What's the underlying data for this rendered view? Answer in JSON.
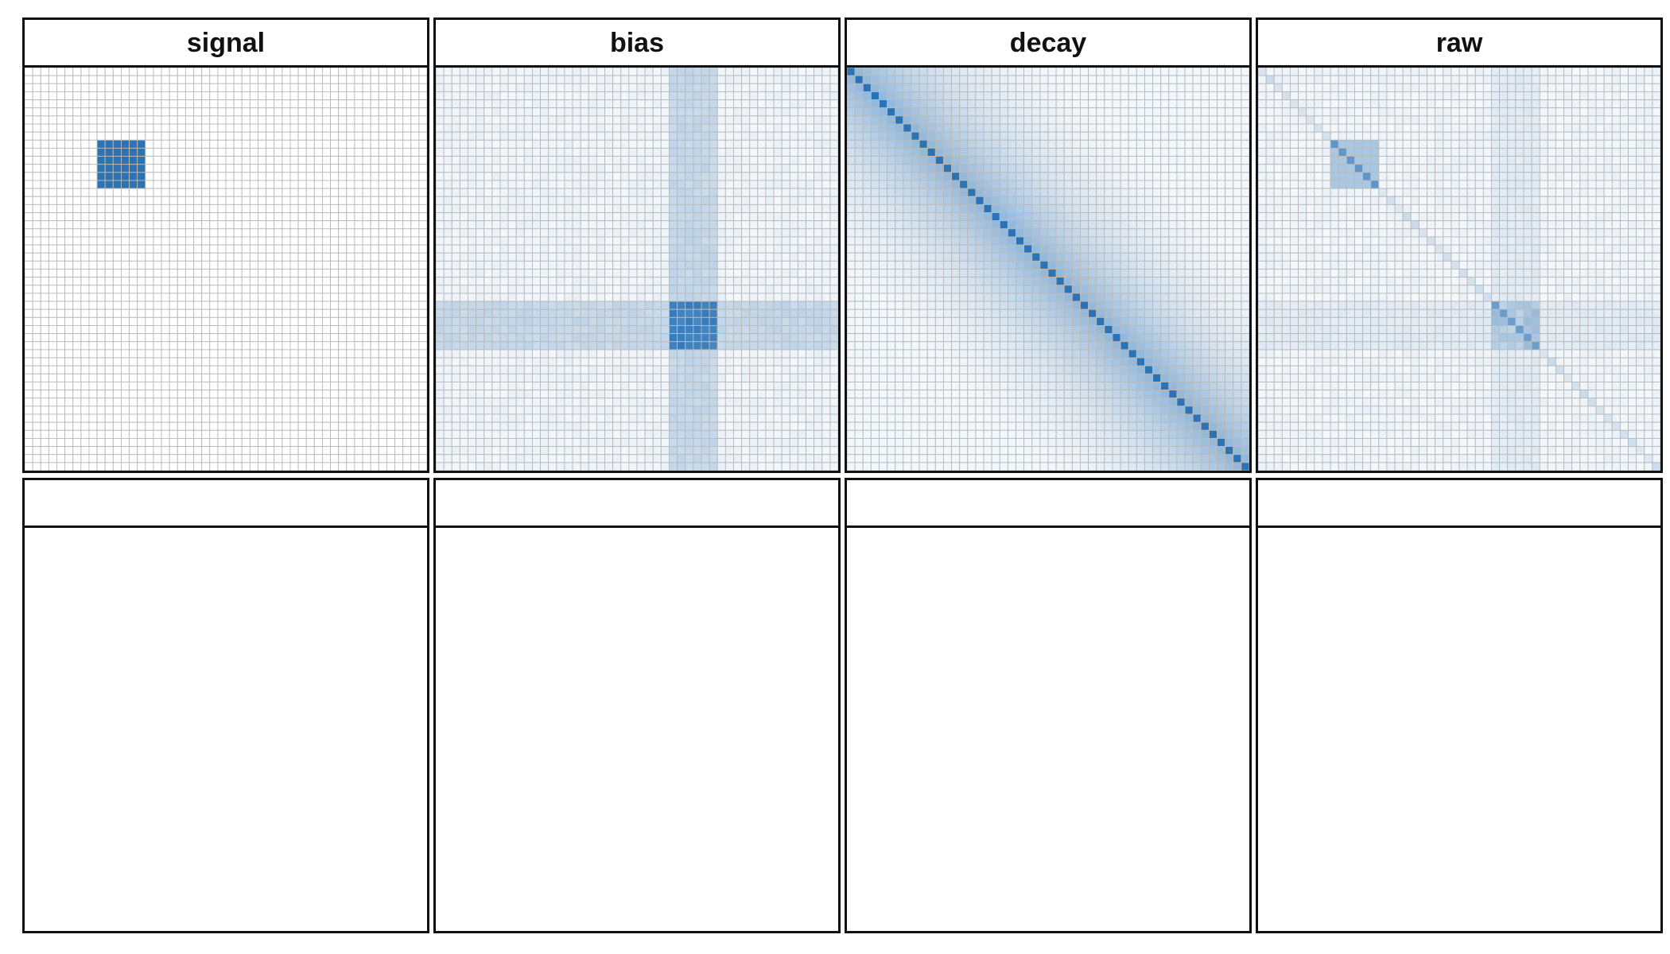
{
  "chart_data": {
    "type": "heatmap",
    "layout": "faceted grid, 2 rows x 4 columns",
    "grid_size": 50,
    "colorscale": {
      "low": "#ffffff",
      "high": "#2b73b5",
      "gridline": "#b9b9b9"
    },
    "value_range": [
      0,
      1
    ],
    "facets": [
      {
        "title": "signal",
        "pattern": "block",
        "description_values": {
          "block_rows": [
            9,
            14
          ],
          "block_cols": [
            9,
            14
          ],
          "block_value": 1.0,
          "background": 0.0
        }
      },
      {
        "title": "bias",
        "pattern": "cross",
        "description_values": {
          "band_rows": [
            29,
            34
          ],
          "band_cols": [
            29,
            34
          ],
          "band_value": 0.28,
          "intersection_value": 0.95,
          "background": 0.08
        }
      },
      {
        "title": "decay",
        "pattern": "exponential_decay",
        "description_values": {
          "diagonal_value": 1.0,
          "decay_rate": 0.09,
          "background_min": 0.06
        }
      },
      {
        "title": "raw",
        "pattern": "mixed",
        "description_values": {
          "block_rows": [
            9,
            14
          ],
          "block_value": 0.4,
          "band_rows": [
            29,
            34
          ],
          "band_value": 0.12,
          "diagonal_value": 0.35,
          "intersection_value": 0.5,
          "background": 0.05
        }
      },
      {
        "title": "",
        "pattern": "empty"
      },
      {
        "title": "",
        "pattern": "empty"
      },
      {
        "title": "",
        "pattern": "empty"
      },
      {
        "title": "",
        "pattern": "empty"
      }
    ]
  }
}
